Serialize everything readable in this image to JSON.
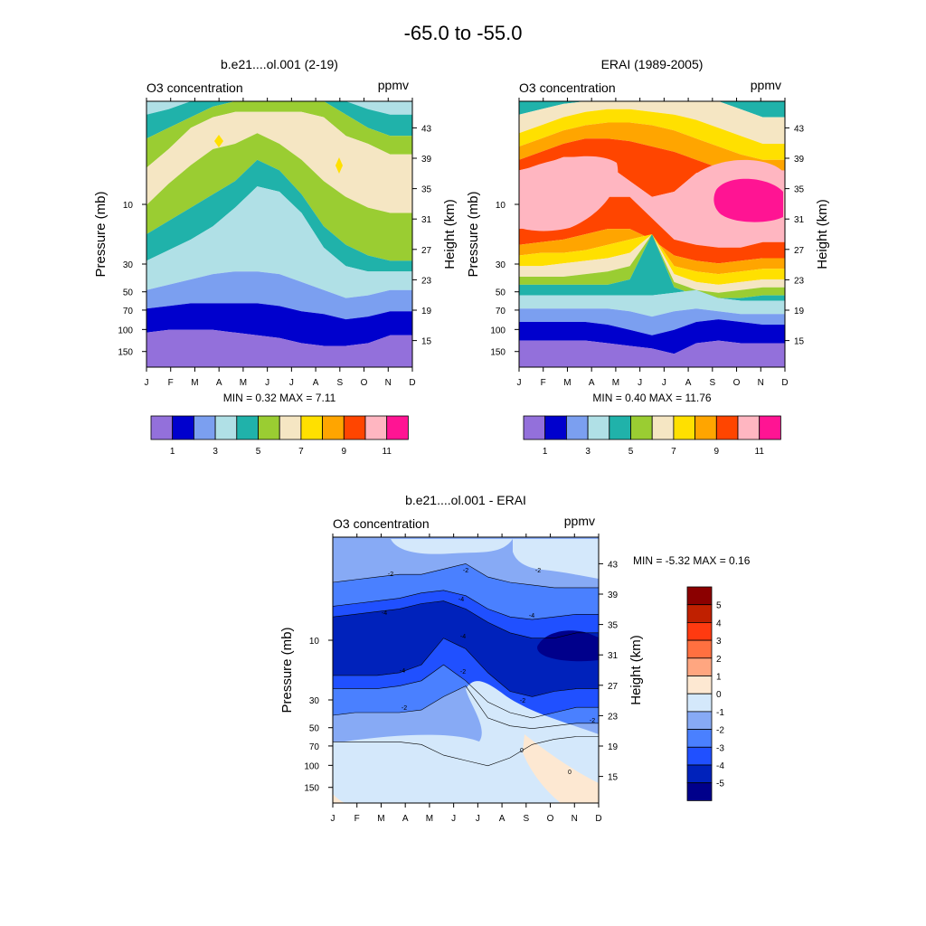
{
  "figure": {
    "title": "-65.0 to -55.0"
  },
  "colors": {
    "panel_palette": [
      "#9370db",
      "#0000cd",
      "#7b9ff0",
      "#b0e0e6",
      "#20b2aa",
      "#9acd32",
      "#f5e6c3",
      "#ffe000",
      "#ffa500",
      "#ff4500",
      "#ffb6c1",
      "#ff1493"
    ],
    "diff_palette": [
      "#00008b",
      "#0022bb",
      "#2050ff",
      "#4a80ff",
      "#87aaf5",
      "#d4e8fb",
      "#fde8d2",
      "#ffa680",
      "#ff7040",
      "#ff3a10",
      "#c02000",
      "#8b0000"
    ]
  },
  "chart_data": [
    {
      "id": "model",
      "type": "contour",
      "title": "b.e21....ol.001 (2-19)",
      "left_label": "O3 concentration",
      "right_label": "ppmv",
      "ylabel": "Pressure (mb)",
      "ylabel_right": "Height (km)",
      "x": [
        "J",
        "F",
        "M",
        "A",
        "M",
        "J",
        "J",
        "A",
        "S",
        "O",
        "N",
        "D"
      ],
      "pressure_ticks": [
        "10",
        "30",
        "50",
        "70",
        "100",
        "150"
      ],
      "pressure_values": [
        10,
        30,
        50,
        70,
        100,
        150
      ],
      "height_ticks": [
        "43",
        "39",
        "35",
        "31",
        "27",
        "23",
        "19",
        "15"
      ],
      "height_values": [
        43,
        39,
        35,
        31,
        27,
        23,
        19,
        15
      ],
      "ylim_mb": [
        200,
        1.5
      ],
      "stats": "MIN =   0.32  MAX =   7.11",
      "min": 0.32,
      "max": 7.11,
      "colorbar_labels": [
        "1",
        "3",
        "5",
        "7",
        "9",
        "11"
      ],
      "levels": [
        1,
        2,
        3,
        4,
        5,
        6,
        7,
        8,
        9,
        10,
        11
      ]
    },
    {
      "id": "erai",
      "type": "contour",
      "title": "ERAI (1989-2005)",
      "left_label": "O3 concentration",
      "right_label": "ppmv",
      "ylabel": "Pressure (mb)",
      "ylabel_right": "Height (km)",
      "x": [
        "J",
        "F",
        "M",
        "A",
        "M",
        "J",
        "J",
        "A",
        "S",
        "O",
        "N",
        "D"
      ],
      "pressure_ticks": [
        "10",
        "30",
        "50",
        "70",
        "100",
        "150"
      ],
      "pressure_values": [
        10,
        30,
        50,
        70,
        100,
        150
      ],
      "height_ticks": [
        "43",
        "39",
        "35",
        "31",
        "27",
        "23",
        "19",
        "15"
      ],
      "height_values": [
        43,
        39,
        35,
        31,
        27,
        23,
        19,
        15
      ],
      "ylim_mb": [
        200,
        1.5
      ],
      "stats": "MIN =   0.40  MAX =  11.76",
      "min": 0.4,
      "max": 11.76,
      "colorbar_labels": [
        "1",
        "3",
        "5",
        "7",
        "9",
        "11"
      ],
      "levels": [
        1,
        2,
        3,
        4,
        5,
        6,
        7,
        8,
        9,
        10,
        11
      ]
    },
    {
      "id": "diff",
      "type": "contour",
      "title": "b.e21....ol.001 - ERAI",
      "left_label": "O3 concentration",
      "right_label": "ppmv",
      "ylabel": "Pressure (mb)",
      "ylabel_right": "Height (km)",
      "x": [
        "J",
        "F",
        "M",
        "A",
        "M",
        "J",
        "J",
        "A",
        "S",
        "O",
        "N",
        "D"
      ],
      "pressure_ticks": [
        "10",
        "30",
        "50",
        "70",
        "100",
        "150"
      ],
      "pressure_values": [
        10,
        30,
        50,
        70,
        100,
        150
      ],
      "height_ticks": [
        "43",
        "39",
        "35",
        "31",
        "27",
        "23",
        "19",
        "15"
      ],
      "height_values": [
        43,
        39,
        35,
        31,
        27,
        23,
        19,
        15
      ],
      "ylim_mb": [
        200,
        1.5
      ],
      "stats": "MIN =  -5.32  MAX =   0.16",
      "min": -5.32,
      "max": 0.16,
      "colorbar_labels": [
        "5",
        "4",
        "3",
        "2",
        "1",
        "0",
        "-1",
        "-2",
        "-3",
        "-4",
        "-5"
      ],
      "levels": [
        -5,
        -4,
        -3,
        -2,
        -1,
        0,
        1,
        2,
        3,
        4,
        5
      ],
      "contour_labels": [
        "-2",
        "-2",
        "-2",
        "-4",
        "-4",
        "-4",
        "-4",
        "-2",
        "-4",
        "-2",
        "-2",
        "-2",
        "0",
        "0"
      ]
    }
  ]
}
